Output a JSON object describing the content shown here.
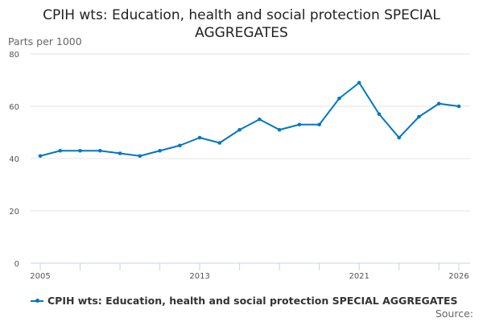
{
  "chart_data": {
    "type": "line",
    "title": "CPIH wts: Education, health and social protection SPECIAL AGGREGATES",
    "ylabel": "Parts per 1000",
    "xlabel": "",
    "x": [
      2005,
      2006,
      2007,
      2008,
      2009,
      2010,
      2011,
      2012,
      2013,
      2014,
      2015,
      2016,
      2017,
      2018,
      2019,
      2020,
      2021,
      2022,
      2023,
      2024,
      2025,
      2026
    ],
    "series": [
      {
        "name": "CPIH wts: Education, health and social protection SPECIAL AGGREGATES",
        "values": [
          41,
          43,
          43,
          43,
          42,
          41,
          43,
          45,
          48,
          46,
          51,
          55,
          51,
          53,
          53,
          63,
          69,
          57,
          48,
          56,
          61,
          60
        ],
        "color": "#0077c0"
      }
    ],
    "ylim": [
      0,
      80
    ],
    "yticks": [
      0,
      20,
      40,
      60,
      80
    ],
    "xtick_labels": [
      "2005",
      "2013",
      "2021",
      "2026"
    ],
    "grid": true,
    "legend": "bottom-left"
  },
  "source_label": "Source:"
}
